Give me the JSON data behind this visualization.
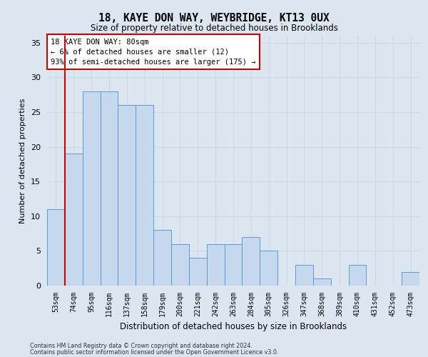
{
  "title1": "18, KAYE DON WAY, WEYBRIDGE, KT13 0UX",
  "title2": "Size of property relative to detached houses in Brooklands",
  "xlabel": "Distribution of detached houses by size in Brooklands",
  "ylabel": "Number of detached properties",
  "categories": [
    "53sqm",
    "74sqm",
    "95sqm",
    "116sqm",
    "137sqm",
    "158sqm",
    "179sqm",
    "200sqm",
    "221sqm",
    "242sqm",
    "263sqm",
    "284sqm",
    "305sqm",
    "326sqm",
    "347sqm",
    "368sqm",
    "389sqm",
    "410sqm",
    "431sqm",
    "452sqm",
    "473sqm"
  ],
  "values": [
    11,
    19,
    28,
    28,
    26,
    26,
    8,
    6,
    4,
    6,
    6,
    7,
    5,
    0,
    3,
    1,
    0,
    3,
    0,
    0,
    2
  ],
  "bar_color": "#c5d8ed",
  "bar_edge_color": "#5b9bd5",
  "grid_color": "#d0d8e4",
  "background_color": "#dce6f0",
  "vline_color": "#cc0000",
  "vline_pos": 0.5,
  "annotation_text": "18 KAYE DON WAY: 80sqm\n← 6% of detached houses are smaller (12)\n93% of semi-detached houses are larger (175) →",
  "annotation_box_facecolor": "#ffffff",
  "annotation_box_edgecolor": "#cc0000",
  "ylim": [
    0,
    36
  ],
  "yticks": [
    0,
    5,
    10,
    15,
    20,
    25,
    30,
    35
  ],
  "footer1": "Contains HM Land Registry data © Crown copyright and database right 2024.",
  "footer2": "Contains public sector information licensed under the Open Government Licence v3.0."
}
